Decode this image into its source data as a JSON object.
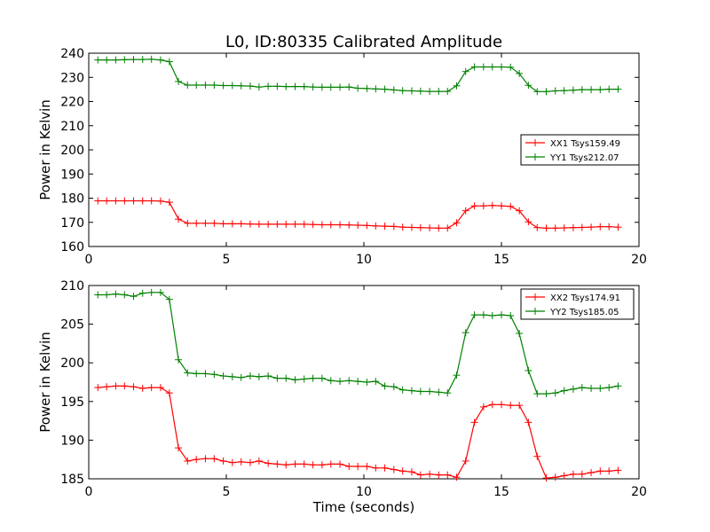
{
  "chart_data": [
    {
      "type": "line",
      "title": "L0, ID:80335 Calibrated Amplitude",
      "xlabel": "",
      "ylabel": "Power in Kelvin",
      "xlim": [
        0,
        20
      ],
      "ylim": [
        160,
        240
      ],
      "xticks": [
        0,
        5,
        10,
        15,
        20
      ],
      "yticks": [
        160,
        170,
        180,
        190,
        200,
        210,
        220,
        230,
        240
      ],
      "grid": false,
      "legend_position": "right",
      "x": [
        0.33,
        0.65,
        0.98,
        1.3,
        1.63,
        1.96,
        2.28,
        2.61,
        2.93,
        3.26,
        3.59,
        3.91,
        4.24,
        4.56,
        4.89,
        5.22,
        5.54,
        5.87,
        6.19,
        6.52,
        6.85,
        7.17,
        7.5,
        7.83,
        8.15,
        8.48,
        8.8,
        9.13,
        9.46,
        9.78,
        10.11,
        10.43,
        10.76,
        11.09,
        11.41,
        11.74,
        12.06,
        12.39,
        12.72,
        13.04,
        13.37,
        13.7,
        14.02,
        14.35,
        14.67,
        15.0,
        15.33,
        15.65,
        15.98,
        16.3,
        16.63,
        16.96,
        17.28,
        17.61,
        17.93,
        18.26,
        18.59,
        18.91,
        19.24
      ],
      "series": [
        {
          "name": "XX1 Tsys159.49",
          "color": "#ff0000",
          "values": [
            178.9,
            178.9,
            178.9,
            178.9,
            178.9,
            178.9,
            178.9,
            178.8,
            178.3,
            171.3,
            169.6,
            169.6,
            169.6,
            169.6,
            169.4,
            169.4,
            169.4,
            169.3,
            169.2,
            169.2,
            169.2,
            169.2,
            169.2,
            169.2,
            169.1,
            169.0,
            169.0,
            169.0,
            168.9,
            168.8,
            168.7,
            168.5,
            168.4,
            168.3,
            168.0,
            167.9,
            167.8,
            167.7,
            167.6,
            167.6,
            169.8,
            174.8,
            176.8,
            176.8,
            177.0,
            176.8,
            176.6,
            174.8,
            170.2,
            167.8,
            167.6,
            167.6,
            167.7,
            167.8,
            167.9,
            168.0,
            168.2,
            168.2,
            168.0
          ]
        },
        {
          "name": "YY1 Tsys212.07",
          "color": "#008000",
          "values": [
            237.2,
            237.2,
            237.2,
            237.3,
            237.4,
            237.4,
            237.5,
            237.2,
            236.5,
            228.3,
            226.8,
            226.8,
            226.8,
            226.8,
            226.6,
            226.6,
            226.5,
            226.4,
            226.0,
            226.3,
            226.3,
            226.2,
            226.2,
            226.2,
            226.0,
            225.9,
            225.9,
            225.9,
            226.0,
            225.5,
            225.4,
            225.2,
            225.1,
            224.8,
            224.5,
            224.4,
            224.3,
            224.2,
            224.2,
            224.2,
            226.5,
            232.4,
            234.3,
            234.3,
            234.3,
            234.3,
            234.2,
            231.6,
            226.7,
            224.1,
            224.1,
            224.4,
            224.5,
            224.7,
            224.9,
            224.9,
            224.9,
            225.1,
            225.1
          ]
        }
      ]
    },
    {
      "type": "line",
      "title": "",
      "xlabel": "Time (seconds)",
      "ylabel": "Power in Kelvin",
      "xlim": [
        0,
        20
      ],
      "ylim": [
        185,
        210
      ],
      "xticks": [
        0,
        5,
        10,
        15,
        20
      ],
      "yticks": [
        185,
        190,
        195,
        200,
        205,
        210
      ],
      "grid": false,
      "legend_position": "top-right",
      "x": [
        0.33,
        0.65,
        0.98,
        1.3,
        1.63,
        1.96,
        2.28,
        2.61,
        2.93,
        3.26,
        3.59,
        3.91,
        4.24,
        4.56,
        4.89,
        5.22,
        5.54,
        5.87,
        6.19,
        6.52,
        6.85,
        7.17,
        7.5,
        7.83,
        8.15,
        8.48,
        8.8,
        9.13,
        9.46,
        9.78,
        10.11,
        10.43,
        10.76,
        11.09,
        11.41,
        11.74,
        12.06,
        12.39,
        12.72,
        13.04,
        13.37,
        13.7,
        14.02,
        14.35,
        14.67,
        15.0,
        15.33,
        15.65,
        15.98,
        16.3,
        16.63,
        16.96,
        17.28,
        17.61,
        17.93,
        18.26,
        18.59,
        18.91,
        19.24
      ],
      "series": [
        {
          "name": "XX2 Tsys174.91",
          "color": "#ff0000",
          "values": [
            196.8,
            196.9,
            197.0,
            197.0,
            196.9,
            196.7,
            196.8,
            196.8,
            196.1,
            189.0,
            187.3,
            187.5,
            187.6,
            187.6,
            187.3,
            187.1,
            187.2,
            187.1,
            187.3,
            187.0,
            186.9,
            186.8,
            186.9,
            186.9,
            186.8,
            186.8,
            186.9,
            186.9,
            186.6,
            186.6,
            186.6,
            186.4,
            186.4,
            186.2,
            186.0,
            185.9,
            185.5,
            185.6,
            185.5,
            185.5,
            185.2,
            187.3,
            192.3,
            194.3,
            194.6,
            194.6,
            194.5,
            194.5,
            192.3,
            187.9,
            185.1,
            185.2,
            185.4,
            185.6,
            185.6,
            185.8,
            186.0,
            186.0,
            186.1
          ]
        },
        {
          "name": "YY2 Tsys185.05",
          "color": "#008000",
          "values": [
            208.8,
            208.8,
            208.9,
            208.8,
            208.6,
            209.0,
            209.1,
            209.1,
            208.2,
            200.4,
            198.7,
            198.6,
            198.6,
            198.5,
            198.3,
            198.2,
            198.1,
            198.3,
            198.2,
            198.3,
            198.0,
            198.0,
            197.8,
            197.9,
            198.0,
            198.0,
            197.7,
            197.6,
            197.7,
            197.6,
            197.5,
            197.6,
            197.0,
            196.9,
            196.5,
            196.4,
            196.3,
            196.3,
            196.2,
            196.1,
            198.4,
            203.9,
            206.2,
            206.2,
            206.1,
            206.2,
            206.1,
            203.8,
            199.0,
            196.0,
            196.0,
            196.1,
            196.4,
            196.6,
            196.8,
            196.7,
            196.7,
            196.8,
            197.0
          ]
        }
      ]
    }
  ]
}
